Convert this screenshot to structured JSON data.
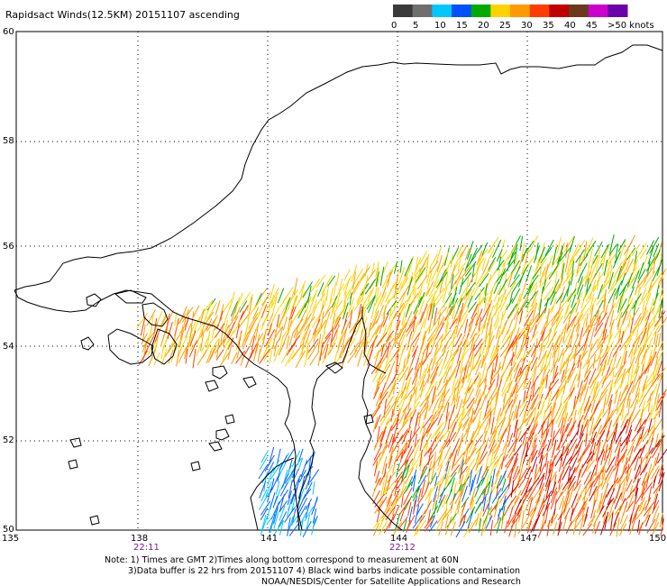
{
  "title": "Rapidsact Winds(12.5KM) 20151107 ascending",
  "legend": {
    "unit": "knots",
    "labels": [
      "0",
      "5",
      "10",
      "15",
      "20",
      "25",
      "30",
      "35",
      "40",
      "45",
      ">50 knots"
    ],
    "colors": [
      "#3a3a3a",
      "#6f6f6f",
      "#00c8ff",
      "#0050ff",
      "#00aa00",
      "#ffd200",
      "#ff9a00",
      "#ff3c00",
      "#c00000",
      "#6a3a1a",
      "#cc00cc",
      "#6a00aa"
    ]
  },
  "lat_labels": [
    "60",
    "58",
    "56",
    "54",
    "52",
    "50"
  ],
  "lon_labels": [
    "135",
    "138",
    "141",
    "144",
    "147",
    "150"
  ],
  "pass_times": [
    "22:11",
    "22:12"
  ],
  "notes": [
    "Note: 1) Times are GMT 2)Times along bottom correspond to measurement at 60N",
    "3)Data buffer is 22 hrs from 20151107 4) Black wind barbs indicate possible contamination",
    "NOAA/NESDIS/Center for Satellite Applications and Research"
  ],
  "wind_colors": {
    "calm": "#0060ff",
    "light": "#00c8ff",
    "moderate": "#00aa00",
    "fresh": "#ffd200",
    "strong": "#ff9a00",
    "gale": "#ff3c00",
    "storm": "#c00000"
  }
}
